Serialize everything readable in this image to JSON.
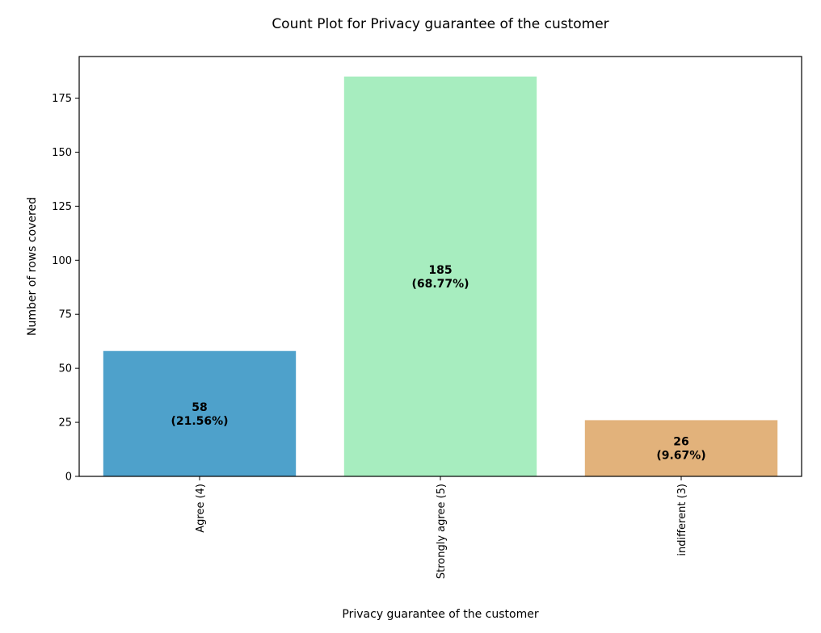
{
  "chart_data": {
    "type": "bar",
    "title": "Count Plot for Privacy guarantee of the customer",
    "xlabel": "Privacy guarantee of the customer",
    "ylabel": "Number of rows covered",
    "categories": [
      "Agree (4)",
      "Strongly agree (5)",
      "indifferent (3)"
    ],
    "values": [
      58,
      185,
      26
    ],
    "data_labels": [
      [
        "58",
        "(21.56%)"
      ],
      [
        "185",
        "(68.77%)"
      ],
      [
        "26",
        "(9.67%)"
      ]
    ],
    "colors": [
      "#4ea1cb",
      "#a7edbf",
      "#e2b27b"
    ],
    "ylim": [
      0,
      194.25
    ],
    "yticks": [
      0,
      25,
      50,
      75,
      100,
      125,
      150,
      175
    ],
    "ytick_labels": [
      "0",
      "25",
      "50",
      "75",
      "100",
      "125",
      "150",
      "175"
    ],
    "xtick_rotation": "vertical",
    "grid": false
  }
}
